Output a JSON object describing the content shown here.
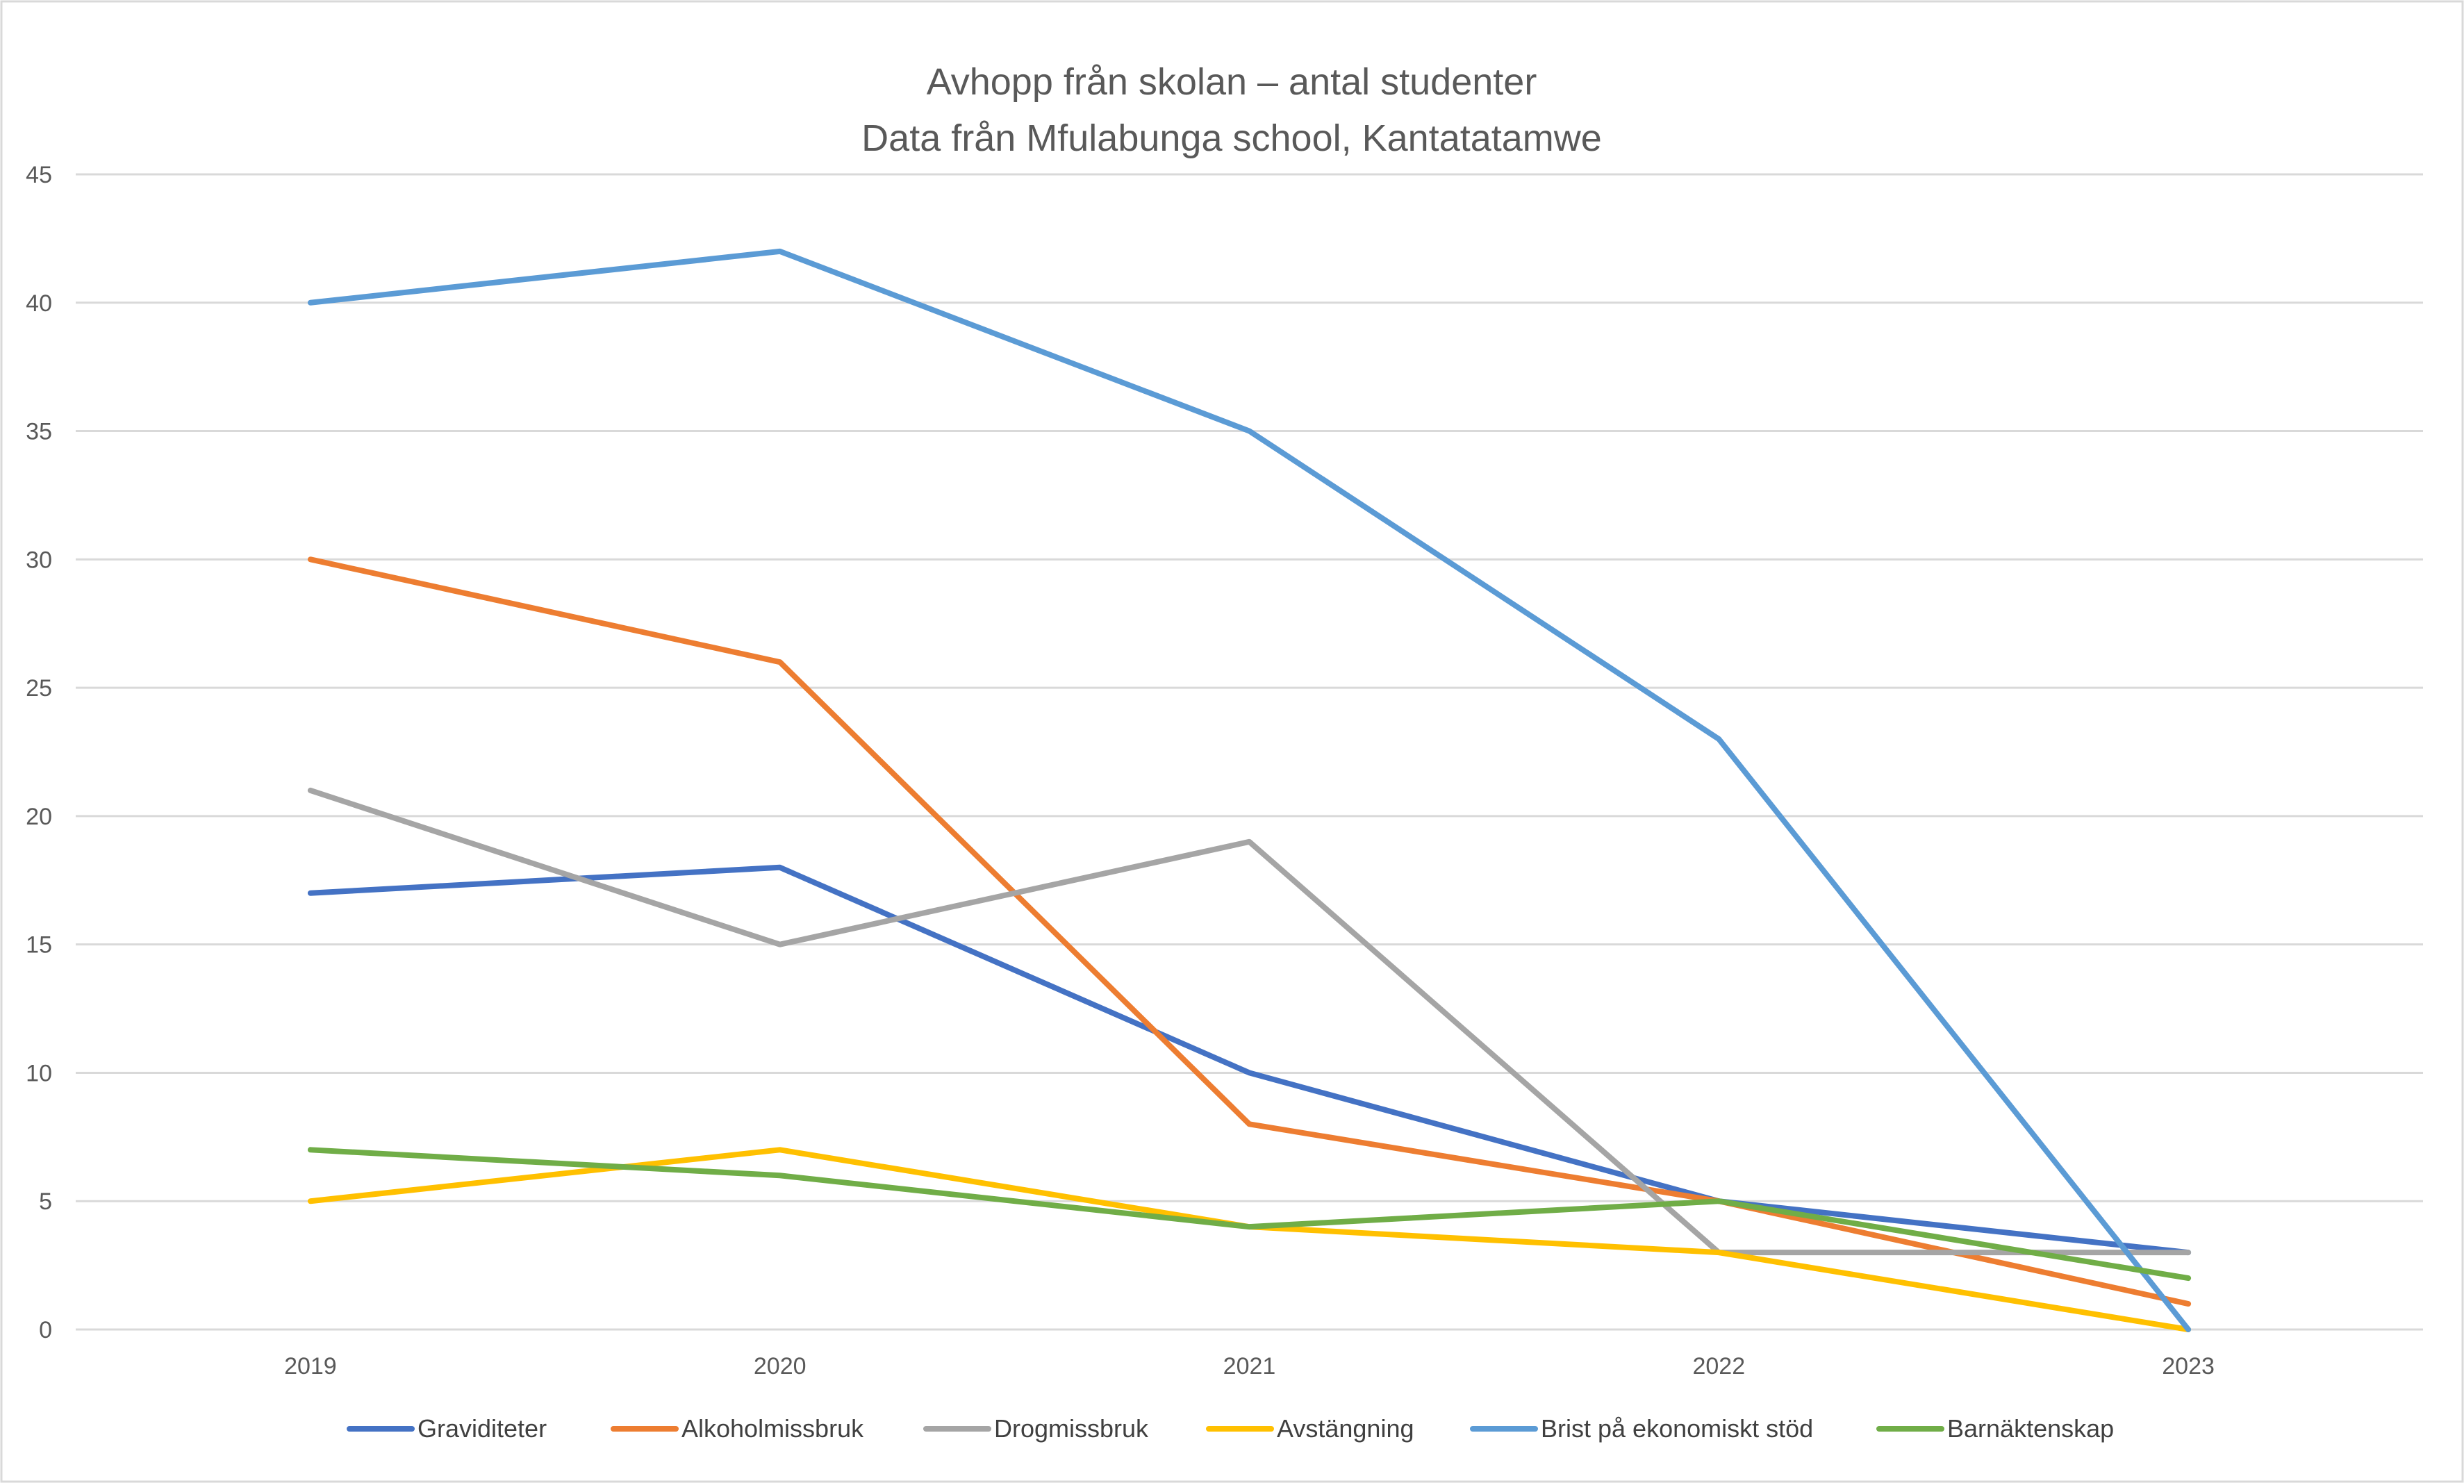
{
  "chart_data": {
    "type": "line",
    "title": [
      "Avhopp från skolan – antal studenter",
      "Data från Mfulabunga school, Kantatatamwe"
    ],
    "xlabel": "",
    "ylabel": "",
    "categories": [
      "2019",
      "2020",
      "2021",
      "2022",
      "2023"
    ],
    "ylim": [
      0,
      45
    ],
    "yticks": [
      0,
      5,
      10,
      15,
      20,
      25,
      30,
      35,
      40,
      45
    ],
    "grid": true,
    "legend": "bottom",
    "series": [
      {
        "name": "Graviditeter",
        "color": "#4472C4",
        "values": [
          17,
          18,
          10,
          5,
          3
        ]
      },
      {
        "name": "Alkoholmissbruk",
        "color": "#ED7D31",
        "values": [
          30,
          26,
          8,
          5,
          1
        ]
      },
      {
        "name": "Drogmissbruk",
        "color": "#A5A5A5",
        "values": [
          21,
          15,
          19,
          3,
          3
        ]
      },
      {
        "name": "Avstängning",
        "color": "#FFC000",
        "values": [
          5,
          7,
          4,
          3,
          0
        ]
      },
      {
        "name": "Brist på ekonomiskt stöd",
        "color": "#5B9BD5",
        "values": [
          40,
          42,
          35,
          23,
          0
        ]
      },
      {
        "name": "Barnäktenskap",
        "color": "#70AD47",
        "values": [
          7,
          6,
          4,
          5,
          2
        ]
      }
    ]
  }
}
